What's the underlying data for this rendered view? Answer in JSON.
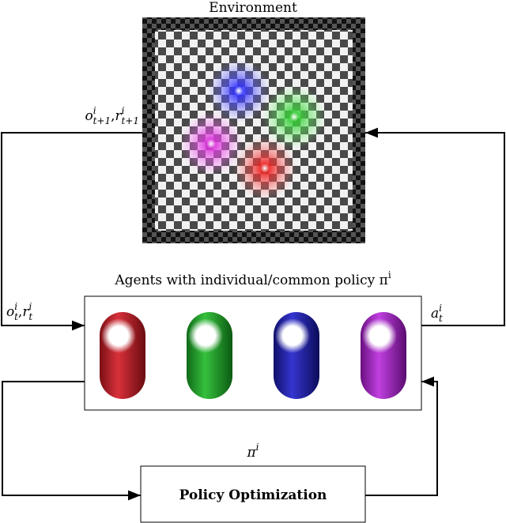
{
  "labels": {
    "env_title": [
      {
        "text": "Environment"
      }
    ],
    "obs_next": [
      {
        "base": "o",
        "sup": "i",
        "sub": "t+1"
      },
      {
        "text": ","
      },
      {
        "base": "r",
        "sup": "i",
        "sub": "t+1"
      }
    ],
    "agents_title": [
      {
        "text": "Agents with individual/common policy "
      },
      {
        "base": "π",
        "sup": "i"
      }
    ],
    "obs": [
      {
        "base": "o",
        "sup": "i",
        "sub": "t"
      },
      {
        "text": ","
      },
      {
        "base": "r",
        "sup": "i",
        "sub": "t"
      }
    ],
    "action": [
      {
        "base": "a",
        "sup": "i",
        "sub": "t"
      }
    ],
    "policy": [
      {
        "base": "π",
        "sup": "i"
      }
    ],
    "optimizer": [
      {
        "text": "Policy Optimization"
      }
    ]
  }
}
